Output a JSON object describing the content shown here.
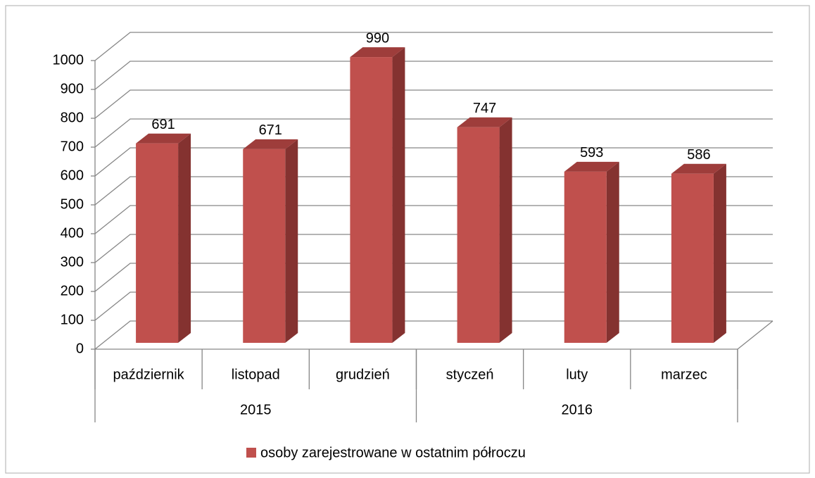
{
  "chart_data": {
    "type": "bar3d",
    "categories": [
      "październik",
      "listopad",
      "grudzień",
      "styczeń",
      "luty",
      "marzec"
    ],
    "groups": [
      {
        "label": "2015",
        "count": 3
      },
      {
        "label": "2016",
        "count": 3
      }
    ],
    "series": [
      {
        "name": "osoby zarejestrowane w ostatnim półroczu",
        "color": "#c0504d",
        "values": [
          691,
          671,
          990,
          747,
          593,
          586
        ]
      }
    ],
    "ylim": [
      0,
      1000
    ],
    "yticks": [
      0,
      100,
      200,
      300,
      400,
      500,
      600,
      700,
      800,
      900,
      1000
    ],
    "grid": true,
    "legend": "bottom"
  }
}
